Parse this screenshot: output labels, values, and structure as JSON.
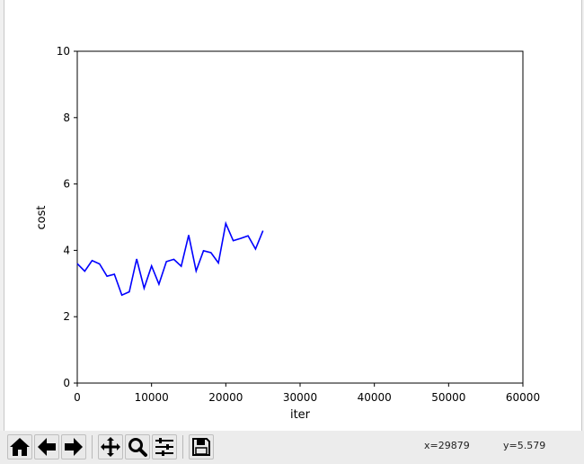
{
  "chart_data": {
    "type": "line",
    "xlabel": "iter",
    "ylabel": "cost",
    "xlim": [
      0,
      60000
    ],
    "ylim": [
      0,
      10
    ],
    "xticks": [
      "0",
      "10000",
      "20000",
      "30000",
      "40000",
      "50000",
      "60000"
    ],
    "yticks": [
      "0",
      "2",
      "4",
      "6",
      "8",
      "10"
    ],
    "grid": false,
    "series": [
      {
        "color": "#0000ff",
        "x": [
          0,
          1000,
          2000,
          3000,
          4000,
          5000,
          6000,
          7000,
          8000,
          9000,
          10000,
          11000,
          12000,
          13000,
          14000,
          15000,
          16000,
          17000,
          18000,
          19000,
          20000,
          21000,
          22000,
          23000,
          24000,
          25000
        ],
        "y": [
          3.6,
          3.37,
          3.69,
          3.59,
          3.22,
          3.28,
          2.65,
          2.75,
          3.74,
          2.86,
          3.53,
          2.98,
          3.66,
          3.73,
          3.52,
          4.46,
          3.38,
          3.99,
          3.93,
          3.62,
          4.81,
          4.29,
          4.36,
          4.44,
          4.04,
          4.59
        ]
      }
    ]
  },
  "toolbar": {
    "buttons": [
      {
        "name": "home",
        "icon": "home-icon"
      },
      {
        "name": "back",
        "icon": "arrow-left-icon"
      },
      {
        "name": "forward",
        "icon": "arrow-right-icon"
      },
      {
        "name": "pan",
        "icon": "move-icon"
      },
      {
        "name": "zoom",
        "icon": "magnifier-icon"
      },
      {
        "name": "configure",
        "icon": "sliders-icon"
      },
      {
        "name": "save",
        "icon": "floppy-disk-icon"
      }
    ],
    "coord_x": "x=29879",
    "coord_y": "y=5.579"
  }
}
